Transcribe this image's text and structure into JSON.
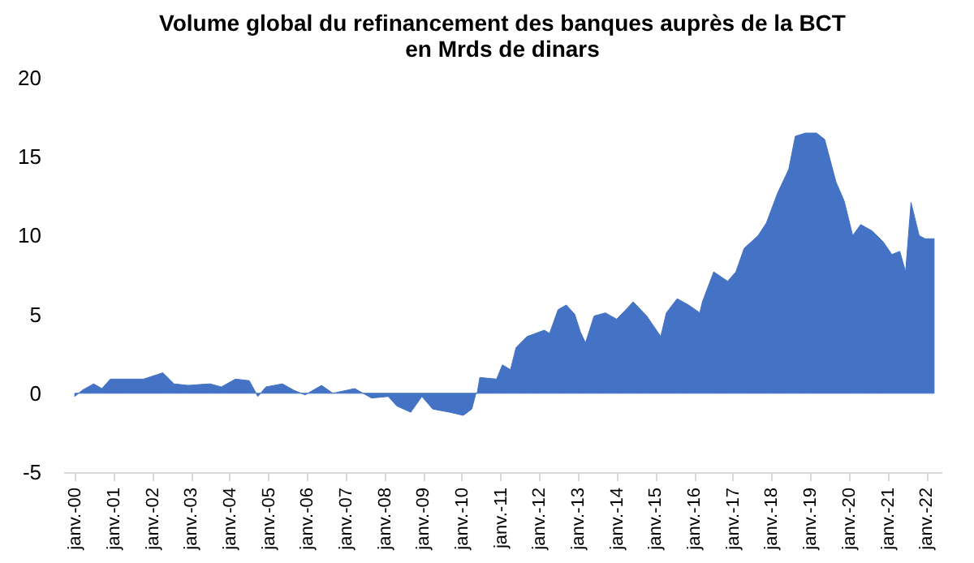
{
  "chart_data": {
    "type": "area",
    "title": "Volume global du refinancement des banques auprès de la BCT",
    "subtitle": "en Mrds de dinars",
    "x": [
      "2000-01-01",
      "2000-03-13",
      "2000-06-27",
      "2000-09-13",
      "2000-12-02",
      "2001-05-07",
      "2001-10-12",
      "2002-04-12",
      "2002-07-26",
      "2002-12-06",
      "2003-07-01",
      "2003-10-15",
      "2004-02-25",
      "2004-07-05",
      "2004-09-24",
      "2004-12-09",
      "2005-05-14",
      "2005-08-28",
      "2005-12-13",
      "2006-05-18",
      "2006-09-02",
      "2007-03-27",
      "2007-09-02",
      "2008-02-07",
      "2008-04-26",
      "2008-09-06",
      "2008-12-20",
      "2009-04-01",
      "2009-09-09",
      "2010-01-15",
      "2010-04-05",
      "2010-05-14",
      "2010-05-25",
      "2010-06-20",
      "2010-11-25",
      "2011-01-19",
      "2011-04-05",
      "2011-05-28",
      "2011-09-09",
      "2012-02-18",
      "2012-04-08",
      "2012-06-27",
      "2012-09-13",
      "2012-12-02",
      "2013-01-23",
      "2013-03-13",
      "2013-06-02",
      "2013-09-17",
      "2014-01-01",
      "2014-04-12",
      "2014-06-06",
      "2014-10-12",
      "2015-02-21",
      "2015-04-15",
      "2015-07-26",
      "2015-11-11",
      "2016-02-25",
      "2016-03-20",
      "2016-07-05",
      "2016-11-14",
      "2017-01-30",
      "2017-04-19",
      "2017-08-28",
      "2017-11-14",
      "2018-02-28",
      "2018-06-13",
      "2018-08-14",
      "2018-11-18",
      "2019-03-02",
      "2019-05-18",
      "2019-09-02",
      "2019-11-18",
      "2020-02-07",
      "2020-04-22",
      "2020-08-07",
      "2020-11-21",
      "2021-02-10",
      "2021-04-26",
      "2021-06-20",
      "2021-08-10",
      "2021-10-26",
      "2021-12-20",
      "2022-03-16"
    ],
    "series": [
      {
        "color": "#4472c4",
        "values": [
          -0.2,
          0.2,
          0.6,
          0.3,
          0.9,
          0.9,
          0.9,
          1.3,
          0.6,
          0.5,
          0.6,
          0.4,
          0.9,
          0.8,
          -0.2,
          0.4,
          0.6,
          0.2,
          -0.1,
          0.5,
          0,
          0.3,
          -0.3,
          -0.2,
          -0.8,
          -1.2,
          -0.2,
          -1.0,
          -1.2,
          -1.4,
          -1.0,
          0,
          0,
          1.0,
          0.9,
          1.8,
          1.5,
          2.9,
          3.6,
          4.0,
          3.8,
          5.3,
          5.6,
          5.0,
          3.9,
          3.2,
          4.9,
          5.1,
          4.7,
          5.4,
          5.8,
          4.9,
          3.6,
          5.1,
          6.0,
          5.6,
          5.1,
          5.8,
          7.7,
          7.1,
          7.7,
          9.2,
          10.0,
          10.8,
          12.7,
          14.2,
          16.3,
          16.5,
          16.5,
          16.1,
          13.4,
          12.2,
          10.0,
          10.7,
          10.3,
          9.6,
          8.8,
          9.0,
          7.7,
          12.1,
          10.0,
          9.8,
          9.8
        ]
      }
    ],
    "xlim": [
      "1999-09-15",
      "2022-05-25"
    ],
    "xticks": [
      {
        "value": "2000-01",
        "label": "janv.-00"
      },
      {
        "value": "2001-01",
        "label": "janv.-01"
      },
      {
        "value": "2002-01",
        "label": "janv.-02"
      },
      {
        "value": "2003-01",
        "label": "janv.-03"
      },
      {
        "value": "2004-01",
        "label": "janv.-04"
      },
      {
        "value": "2005-01",
        "label": "janv.-05"
      },
      {
        "value": "2006-01",
        "label": "janv.-06"
      },
      {
        "value": "2007-01",
        "label": "janv.-07"
      },
      {
        "value": "2008-01",
        "label": "janv.-08"
      },
      {
        "value": "2009-01",
        "label": "janv.-09"
      },
      {
        "value": "2010-01",
        "label": "janv.-10"
      },
      {
        "value": "2011-01",
        "label": "janv.-11"
      },
      {
        "value": "2012-01",
        "label": "janv.-12"
      },
      {
        "value": "2013-01",
        "label": "janv.-13"
      },
      {
        "value": "2014-01",
        "label": "janv.-14"
      },
      {
        "value": "2015-01",
        "label": "janv.-15"
      },
      {
        "value": "2016-01",
        "label": "janv.-16"
      },
      {
        "value": "2017-01",
        "label": "janv.-17"
      },
      {
        "value": "2018-01",
        "label": "janv.-18"
      },
      {
        "value": "2019-01",
        "label": "janv.-19"
      },
      {
        "value": "2020-01",
        "label": "janv.-20"
      },
      {
        "value": "2021-01",
        "label": "janv.-21"
      },
      {
        "value": "2022-01",
        "label": "janv.-22"
      }
    ],
    "ylim": [
      -5,
      20
    ],
    "yticks": [
      -5,
      0,
      5,
      10,
      15,
      20
    ],
    "grid": false
  }
}
